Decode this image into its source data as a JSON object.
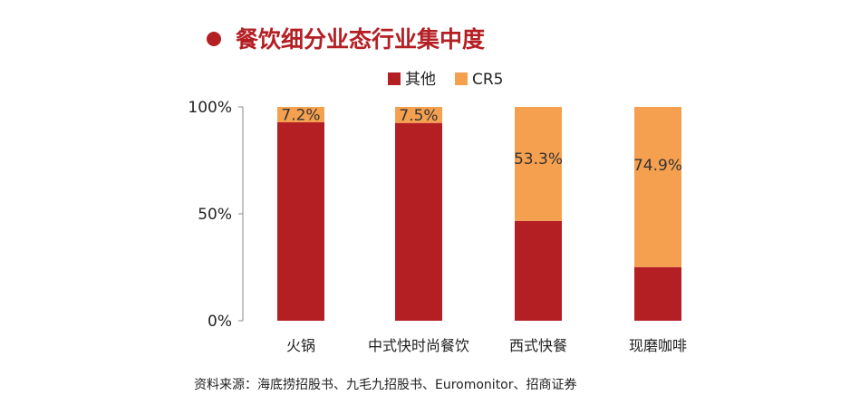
{
  "chart_data": {
    "type": "bar",
    "stacked": true,
    "title": "餐饮细分业态行业集中度",
    "categories": [
      "火锅",
      "中式快时尚餐饮",
      "西式快餐",
      "现磨咖啡"
    ],
    "series": [
      {
        "name": "其他",
        "values": [
          92.8,
          92.5,
          46.7,
          25.1
        ],
        "color": "#b41f24",
        "labels": [
          "",
          "",
          "",
          ""
        ]
      },
      {
        "name": "CR5",
        "values": [
          7.2,
          7.5,
          53.3,
          74.9
        ],
        "color": "#f5a04f",
        "labels": [
          "7.2%",
          "7.5%",
          "53.3%",
          "74.9%"
        ]
      }
    ],
    "yticks": [
      "0%",
      "50%",
      "100%"
    ],
    "ylim": [
      0,
      100
    ],
    "legend_position": "top",
    "grid": false
  },
  "title_bullet_color": "#b41f24",
  "source": "资料来源：海底捞招股书、九毛九招股书、Euromonitor、招商证券"
}
